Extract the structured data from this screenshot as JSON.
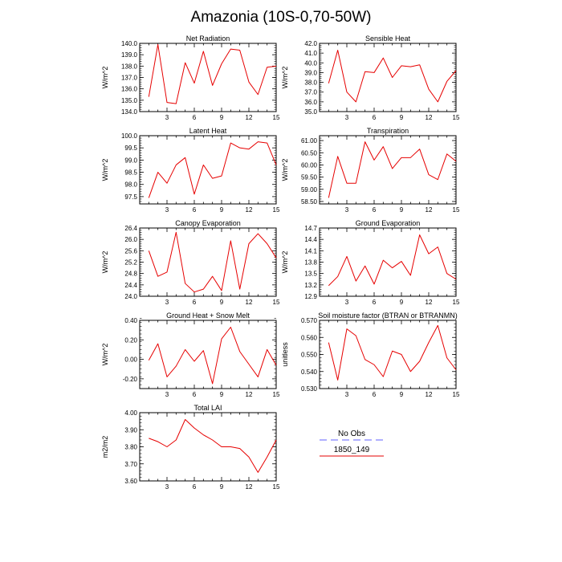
{
  "title": "Amazonia (10S-0,70-50W)",
  "colors": {
    "series": "#e60000",
    "obs": "#8080ff",
    "axis": "#000000"
  },
  "legend": {
    "obs_label": "No Obs",
    "model_label": "1850_149"
  },
  "chart_data": [
    {
      "type": "line",
      "title": "Net Radiation",
      "ylabel": "W/m^2",
      "x": [
        1,
        2,
        3,
        4,
        5,
        6,
        7,
        8,
        9,
        10,
        11,
        12,
        13,
        14,
        15
      ],
      "xlim": [
        0,
        15
      ],
      "xticks": [
        3,
        6,
        9,
        12,
        15
      ],
      "ylim": [
        134.0,
        140.0
      ],
      "yticks": [
        134.0,
        135.0,
        136.0,
        137.0,
        138.0,
        139.0,
        140.0
      ],
      "ytick_labels": [
        "134.0",
        "135.0",
        "136.0",
        "137.0",
        "138.0",
        "139.0",
        "140.0"
      ],
      "series": [
        {
          "values": [
            135.3,
            139.9,
            134.8,
            134.7,
            138.3,
            136.5,
            139.3,
            136.3,
            138.2,
            139.5,
            139.4,
            136.6,
            135.5,
            137.9,
            138.0
          ]
        }
      ]
    },
    {
      "type": "line",
      "title": "Sensible Heat",
      "ylabel": "W/m^2",
      "x": [
        1,
        2,
        3,
        4,
        5,
        6,
        7,
        8,
        9,
        10,
        11,
        12,
        13,
        14,
        15
      ],
      "xlim": [
        0,
        15
      ],
      "xticks": [
        3,
        6,
        9,
        12,
        15
      ],
      "ylim": [
        35.0,
        42.0
      ],
      "yticks": [
        35.0,
        36.0,
        37.0,
        38.0,
        39.0,
        40.0,
        41.0,
        42.0
      ],
      "ytick_labels": [
        "35.0",
        "36.0",
        "37.0",
        "38.0",
        "39.0",
        "40.0",
        "41.0",
        "42.0"
      ],
      "series": [
        {
          "values": [
            37.9,
            41.3,
            37.0,
            36.0,
            39.1,
            39.0,
            40.5,
            38.5,
            39.7,
            39.6,
            39.8,
            37.3,
            36.0,
            38.1,
            39.2
          ]
        }
      ]
    },
    {
      "type": "line",
      "title": "Latent Heat",
      "ylabel": "W/m^2",
      "x": [
        1,
        2,
        3,
        4,
        5,
        6,
        7,
        8,
        9,
        10,
        11,
        12,
        13,
        14,
        15
      ],
      "xlim": [
        0,
        15
      ],
      "xticks": [
        3,
        6,
        9,
        12,
        15
      ],
      "ylim": [
        97.2,
        100.0
      ],
      "yticks": [
        97.5,
        98.0,
        98.5,
        99.0,
        99.5,
        100.0
      ],
      "ytick_labels": [
        "97.5",
        "98.0",
        "98.5",
        "99.0",
        "99.5",
        "100.0"
      ],
      "series": [
        {
          "values": [
            97.45,
            98.5,
            98.05,
            98.8,
            99.1,
            97.6,
            98.8,
            98.25,
            98.35,
            99.7,
            99.5,
            99.45,
            99.75,
            99.7,
            98.8
          ]
        }
      ]
    },
    {
      "type": "line",
      "title": "Transpiration",
      "ylabel": "W/m^2",
      "x": [
        1,
        2,
        3,
        4,
        5,
        6,
        7,
        8,
        9,
        10,
        11,
        12,
        13,
        14,
        15
      ],
      "xlim": [
        0,
        15
      ],
      "xticks": [
        3,
        6,
        9,
        12,
        15
      ],
      "ylim": [
        58.4,
        61.2
      ],
      "yticks": [
        58.5,
        59.0,
        59.5,
        60.0,
        60.5,
        61.0
      ],
      "ytick_labels": [
        "58.50",
        "59.00",
        "59.50",
        "60.00",
        "60.50",
        "61.00"
      ],
      "series": [
        {
          "values": [
            58.65,
            60.35,
            59.25,
            59.25,
            60.95,
            60.2,
            60.75,
            59.85,
            60.3,
            60.3,
            60.65,
            59.6,
            59.4,
            60.45,
            60.15
          ]
        }
      ]
    },
    {
      "type": "line",
      "title": "Canopy Evaporation",
      "ylabel": "W/m^2",
      "x": [
        1,
        2,
        3,
        4,
        5,
        6,
        7,
        8,
        9,
        10,
        11,
        12,
        13,
        14,
        15
      ],
      "xlim": [
        0,
        15
      ],
      "xticks": [
        3,
        6,
        9,
        12,
        15
      ],
      "ylim": [
        24.0,
        26.4
      ],
      "yticks": [
        24.0,
        24.4,
        24.8,
        25.2,
        25.6,
        26.0,
        26.4
      ],
      "ytick_labels": [
        "24.0",
        "24.4",
        "24.8",
        "25.2",
        "25.6",
        "26.0",
        "26.4"
      ],
      "series": [
        {
          "values": [
            25.6,
            24.7,
            24.85,
            26.25,
            24.45,
            24.15,
            24.25,
            24.7,
            24.2,
            25.95,
            24.25,
            25.85,
            26.2,
            25.85,
            25.35
          ]
        }
      ]
    },
    {
      "type": "line",
      "title": "Ground Evaporation",
      "ylabel": "W/m^2",
      "x": [
        1,
        2,
        3,
        4,
        5,
        6,
        7,
        8,
        9,
        10,
        11,
        12,
        13,
        14,
        15
      ],
      "xlim": [
        0,
        15
      ],
      "xticks": [
        3,
        6,
        9,
        12,
        15
      ],
      "ylim": [
        12.9,
        14.7
      ],
      "yticks": [
        12.9,
        13.2,
        13.5,
        13.8,
        14.1,
        14.4,
        14.7
      ],
      "ytick_labels": [
        "12.9",
        "13.2",
        "13.5",
        "13.8",
        "14.1",
        "14.4",
        "14.7"
      ],
      "series": [
        {
          "values": [
            13.18,
            13.42,
            13.95,
            13.3,
            13.7,
            13.22,
            13.85,
            13.65,
            13.82,
            13.45,
            14.52,
            14.02,
            14.2,
            13.5,
            13.35
          ]
        }
      ]
    },
    {
      "type": "line",
      "title": "Ground Heat + Snow Melt",
      "ylabel": "W/m^2",
      "x": [
        1,
        2,
        3,
        4,
        5,
        6,
        7,
        8,
        9,
        10,
        11,
        12,
        13,
        14,
        15
      ],
      "xlim": [
        0,
        15
      ],
      "xticks": [
        3,
        6,
        9,
        12,
        15
      ],
      "ylim": [
        -0.3,
        0.4
      ],
      "yticks": [
        -0.2,
        0.0,
        0.2,
        0.4
      ],
      "ytick_labels": [
        "-0.20",
        "0.00",
        "0.20",
        "0.40"
      ],
      "series": [
        {
          "values": [
            -0.01,
            0.16,
            -0.18,
            -0.07,
            0.1,
            -0.02,
            0.09,
            -0.25,
            0.21,
            0.33,
            0.08,
            -0.05,
            -0.18,
            0.1,
            -0.06
          ]
        }
      ]
    },
    {
      "type": "line",
      "title": "Soil moisture factor (BTRAN or BTRANMN)",
      "ylabel": "unitless",
      "x": [
        1,
        2,
        3,
        4,
        5,
        6,
        7,
        8,
        9,
        10,
        11,
        12,
        13,
        14,
        15
      ],
      "xlim": [
        0,
        15
      ],
      "xticks": [
        3,
        6,
        9,
        12,
        15
      ],
      "ylim": [
        0.53,
        0.57
      ],
      "yticks": [
        0.53,
        0.54,
        0.55,
        0.56,
        0.57
      ],
      "ytick_labels": [
        "0.530",
        "0.540",
        "0.550",
        "0.560",
        "0.570"
      ],
      "series": [
        {
          "values": [
            0.557,
            0.535,
            0.565,
            0.561,
            0.547,
            0.544,
            0.537,
            0.552,
            0.55,
            0.54,
            0.546,
            0.557,
            0.567,
            0.548,
            0.541
          ]
        }
      ]
    },
    {
      "type": "line",
      "title": "Total LAI",
      "ylabel": "m2/m2",
      "x": [
        1,
        2,
        3,
        4,
        5,
        6,
        7,
        8,
        9,
        10,
        11,
        12,
        13,
        14,
        15
      ],
      "xlim": [
        0,
        15
      ],
      "xticks": [
        3,
        6,
        9,
        12,
        15
      ],
      "ylim": [
        3.6,
        4.0
      ],
      "yticks": [
        3.6,
        3.7,
        3.8,
        3.9,
        4.0
      ],
      "ytick_labels": [
        "3.60",
        "3.70",
        "3.80",
        "3.90",
        "4.00"
      ],
      "series": [
        {
          "values": [
            3.85,
            3.83,
            3.8,
            3.84,
            3.96,
            3.91,
            3.87,
            3.84,
            3.8,
            3.8,
            3.79,
            3.74,
            3.65,
            3.74,
            3.84
          ]
        }
      ]
    }
  ]
}
